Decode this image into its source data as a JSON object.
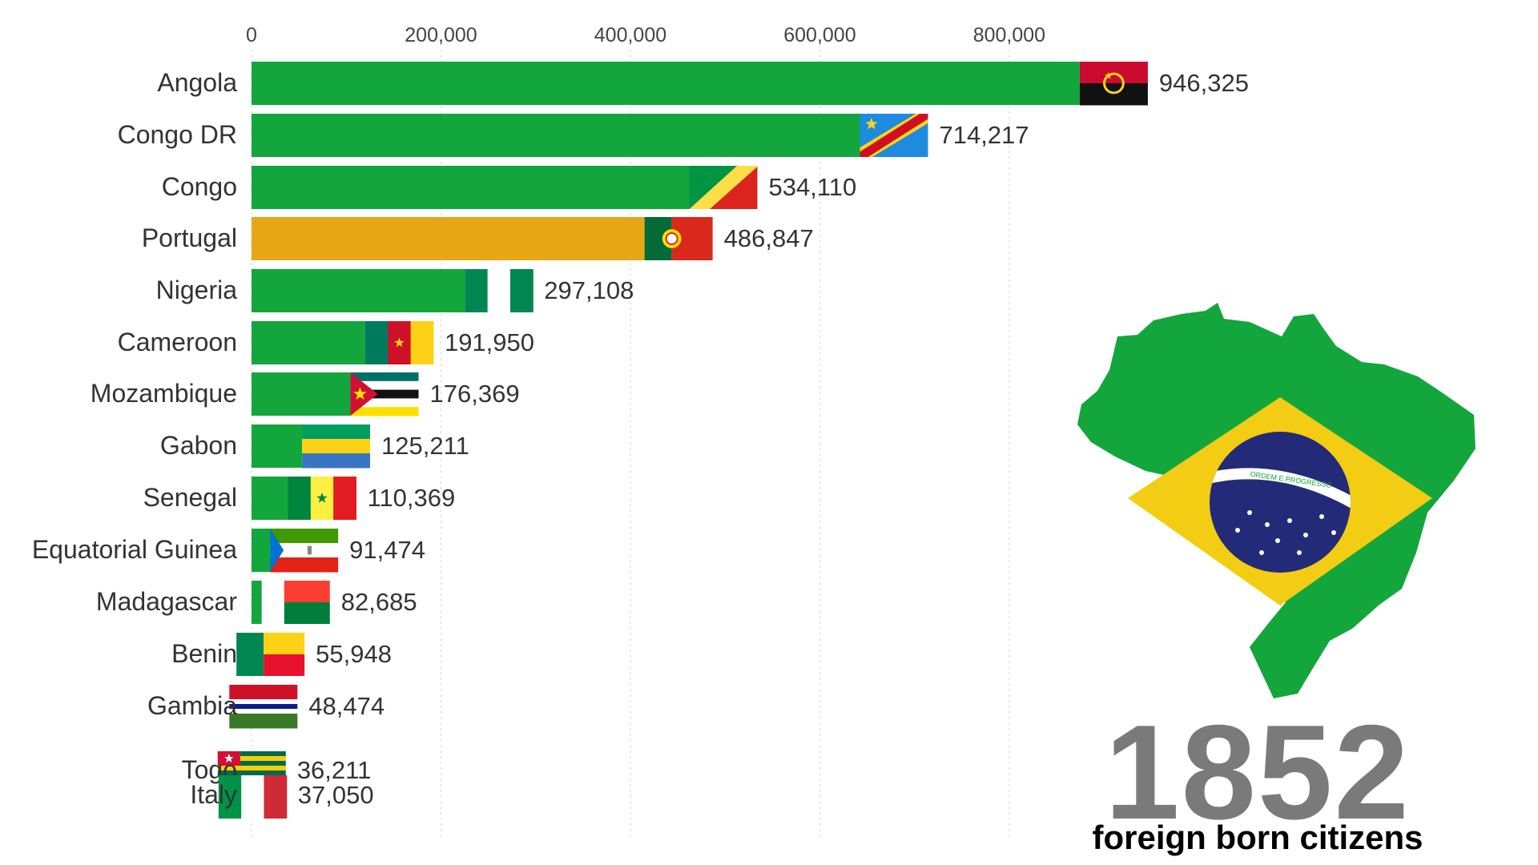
{
  "chart_data": {
    "type": "bar",
    "title": "",
    "xlabel": "",
    "ylabel": "",
    "xlim": [
      0,
      1000000
    ],
    "x_ticks": [
      0,
      200000,
      400000,
      600000,
      800000
    ],
    "x_tick_labels": [
      "0",
      "200,000",
      "400,000",
      "600,000",
      "800,000"
    ],
    "grid": true,
    "categories": [
      "Angola",
      "Congo DR",
      "Congo",
      "Portugal",
      "Nigeria",
      "Cameroon",
      "Mozambique",
      "Gabon",
      "Senegal",
      "Equatorial Guinea",
      "Madagascar",
      "Benin",
      "Gambia",
      "Togo",
      "Italy"
    ],
    "values": [
      946325,
      714217,
      534110,
      486847,
      297108,
      191950,
      176369,
      125211,
      110369,
      91474,
      82685,
      55948,
      48474,
      36211,
      37050
    ],
    "value_labels": [
      "946,325",
      "714,217",
      "534,110",
      "486,847",
      "297,108",
      "191,950",
      "176,369",
      "125,211",
      "110,369",
      "91,474",
      "82,685",
      "55,948",
      "48,474",
      "36,211",
      "37,050"
    ],
    "bar_colors": [
      "#13a63c",
      "#13a63c",
      "#13a63c",
      "#e6a717",
      "#13a63c",
      "#13a63c",
      "#13a63c",
      "#13a63c",
      "#13a63c",
      "#13a63c",
      "#13a63c",
      "#13a63c",
      "#13a63c",
      "#13a63c",
      "#e6a717"
    ],
    "flags": [
      "angola-flag",
      "congo-dr-flag",
      "congo-flag",
      "portugal-flag",
      "nigeria-flag",
      "cameroon-flag",
      "mozambique-flag",
      "gabon-flag",
      "senegal-flag",
      "equatorial-guinea-flag",
      "madagascar-flag",
      "benin-flag",
      "gambia-flag",
      "togo-flag",
      "italy-flag"
    ]
  },
  "overlay": {
    "year": "1852",
    "subtitle": "foreign born citizens",
    "map_icon": "brazil-map-icon",
    "motto": "ORDEM E PROGRESSO"
  }
}
